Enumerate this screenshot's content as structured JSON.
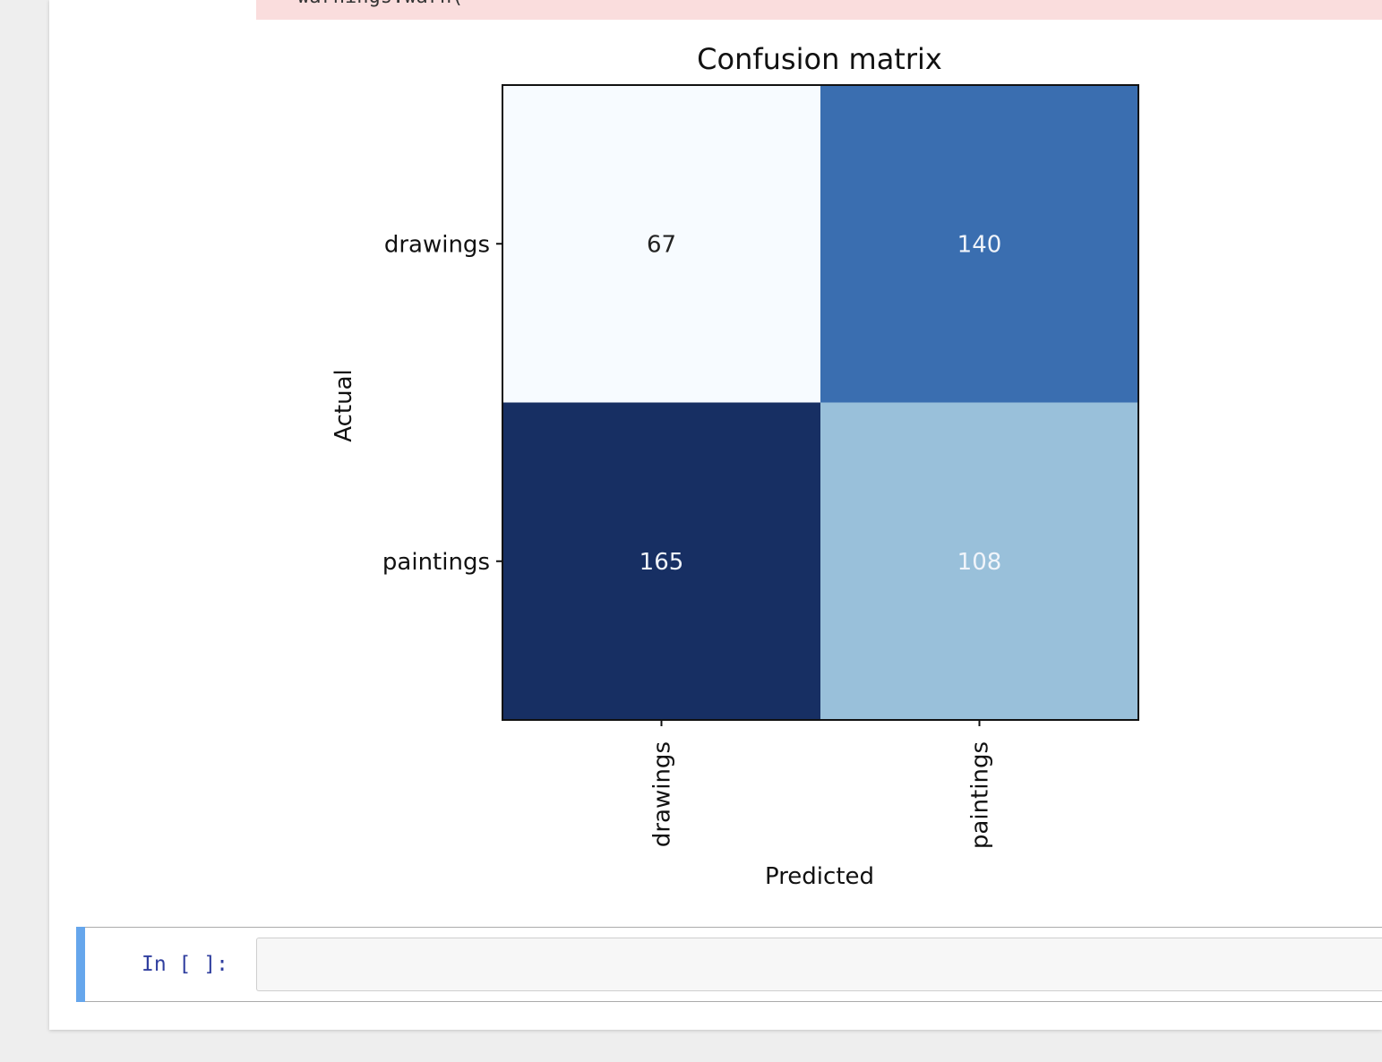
{
  "notebook": {
    "stderr_text": "warnings.warn(",
    "input_prompt": "In [ ]:",
    "input_value": ""
  },
  "chart_data": {
    "type": "heatmap",
    "title": "Confusion matrix",
    "xlabel": "Predicted",
    "ylabel": "Actual",
    "x_categories": [
      "drawings",
      "paintings"
    ],
    "y_categories": [
      "drawings",
      "paintings"
    ],
    "values": [
      [
        67,
        140
      ],
      [
        165,
        108
      ]
    ],
    "colormap": "Blues",
    "cell_colors": [
      [
        "#f7fbff",
        "#3a6eb0"
      ],
      [
        "#172f63",
        "#99c0da"
      ]
    ],
    "text_colors": [
      [
        "#222222",
        "#f0f4fa"
      ],
      [
        "#f0f4fa",
        "#f0f4fa"
      ]
    ]
  }
}
